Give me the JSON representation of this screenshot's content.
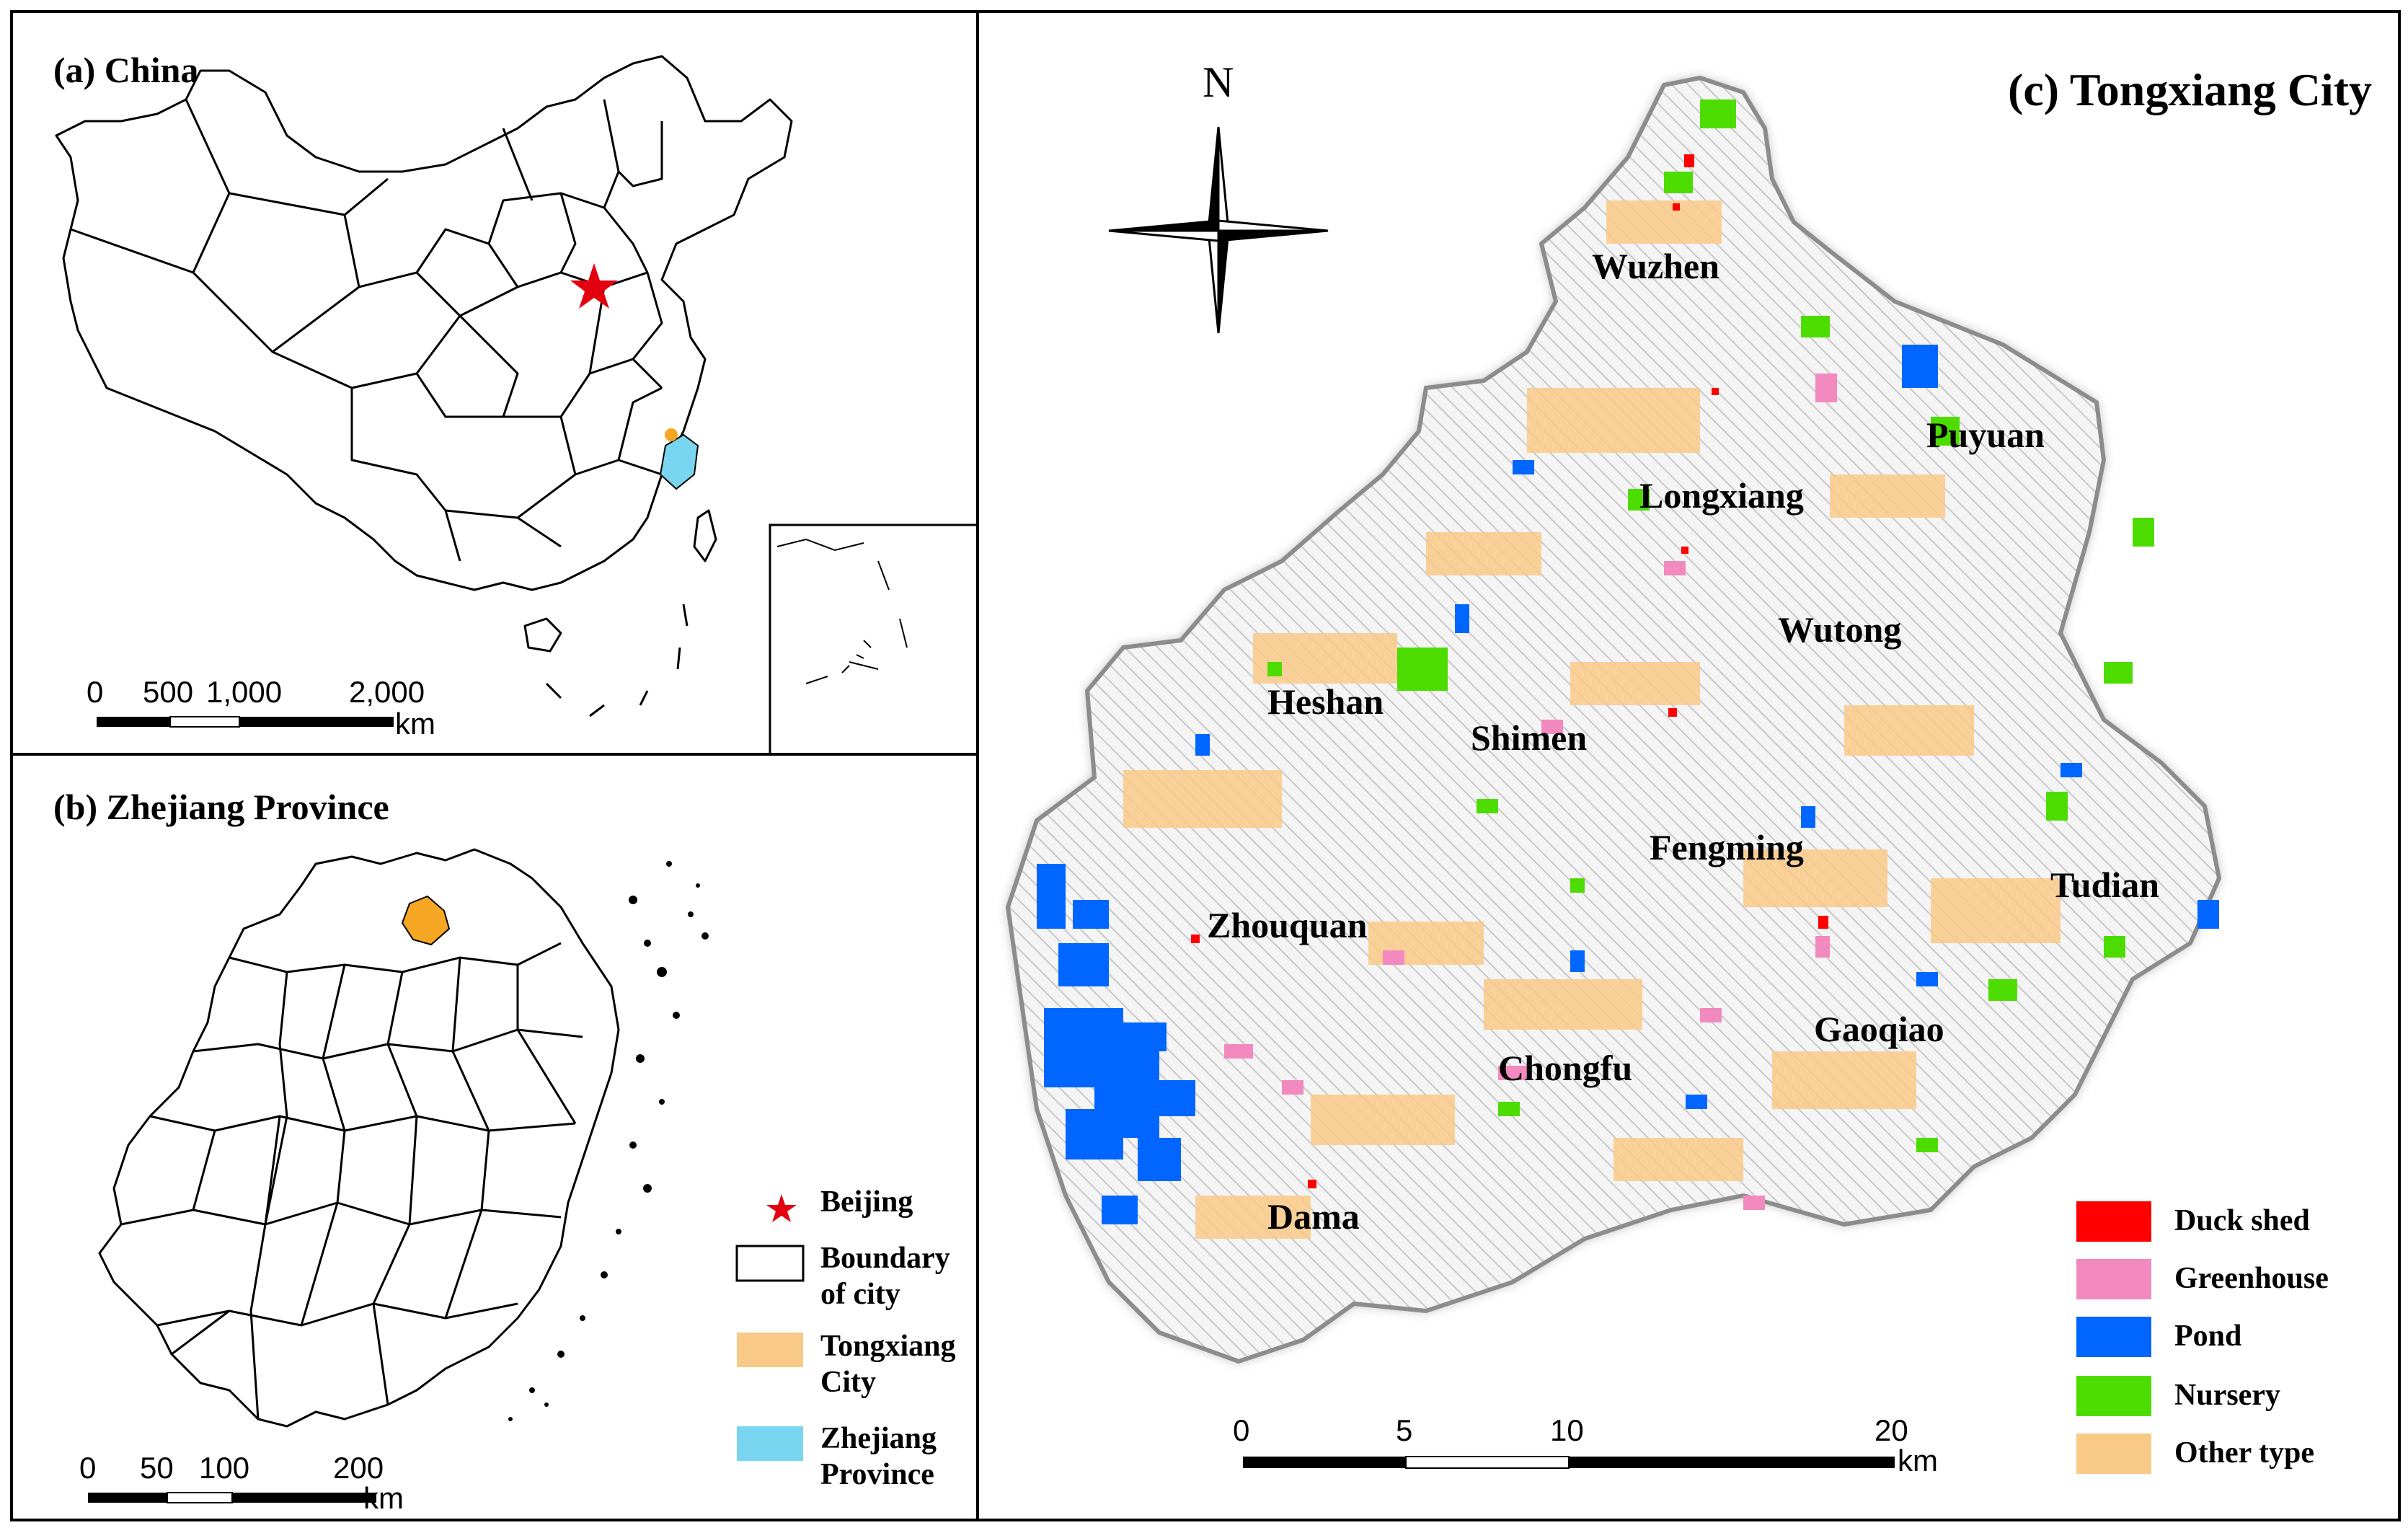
{
  "panels": {
    "a": {
      "title": "(a) China"
    },
    "b": {
      "title": "(b) Zhejiang Province"
    },
    "c": {
      "title": "(c) Tongxiang City"
    }
  },
  "china_scale": {
    "ticks": [
      "0",
      "500",
      "1,000",
      "2,000"
    ],
    "unit": "km"
  },
  "zhejiang_scale": {
    "ticks": [
      "0",
      "50",
      "100",
      "200"
    ],
    "unit": "km"
  },
  "tongxiang_scale": {
    "ticks": [
      "0",
      "5",
      "10",
      "20"
    ],
    "unit": "km"
  },
  "north_arrow": {
    "label": "N"
  },
  "legend_b": [
    {
      "symbol": "star",
      "label": "Beijing",
      "color": "#e3000f"
    },
    {
      "symbol": "box",
      "label": "Boundary of city",
      "color": "#ffffff"
    },
    {
      "symbol": "box",
      "label": "Tongxiang City",
      "color": "#f9c987"
    },
    {
      "symbol": "box",
      "label": "Zhejiang Province",
      "color": "#7ad6f0"
    }
  ],
  "legend_c": [
    {
      "label": "Duck shed",
      "color": "#ff0000"
    },
    {
      "label": "Greenhouse",
      "color": "#f28ac0"
    },
    {
      "label": "Pond",
      "color": "#0066ff"
    },
    {
      "label": "Nursery",
      "color": "#4ddc00"
    },
    {
      "label": "Other type",
      "color": "#f9c987"
    }
  ],
  "towns": [
    "Wuzhen",
    "Puyuan",
    "Longxiang",
    "Wutong",
    "Heshan",
    "Shimen",
    "Fengming",
    "Tudian",
    "Zhouquan",
    "Gaoqiao",
    "Chongfu",
    "Dama"
  ]
}
